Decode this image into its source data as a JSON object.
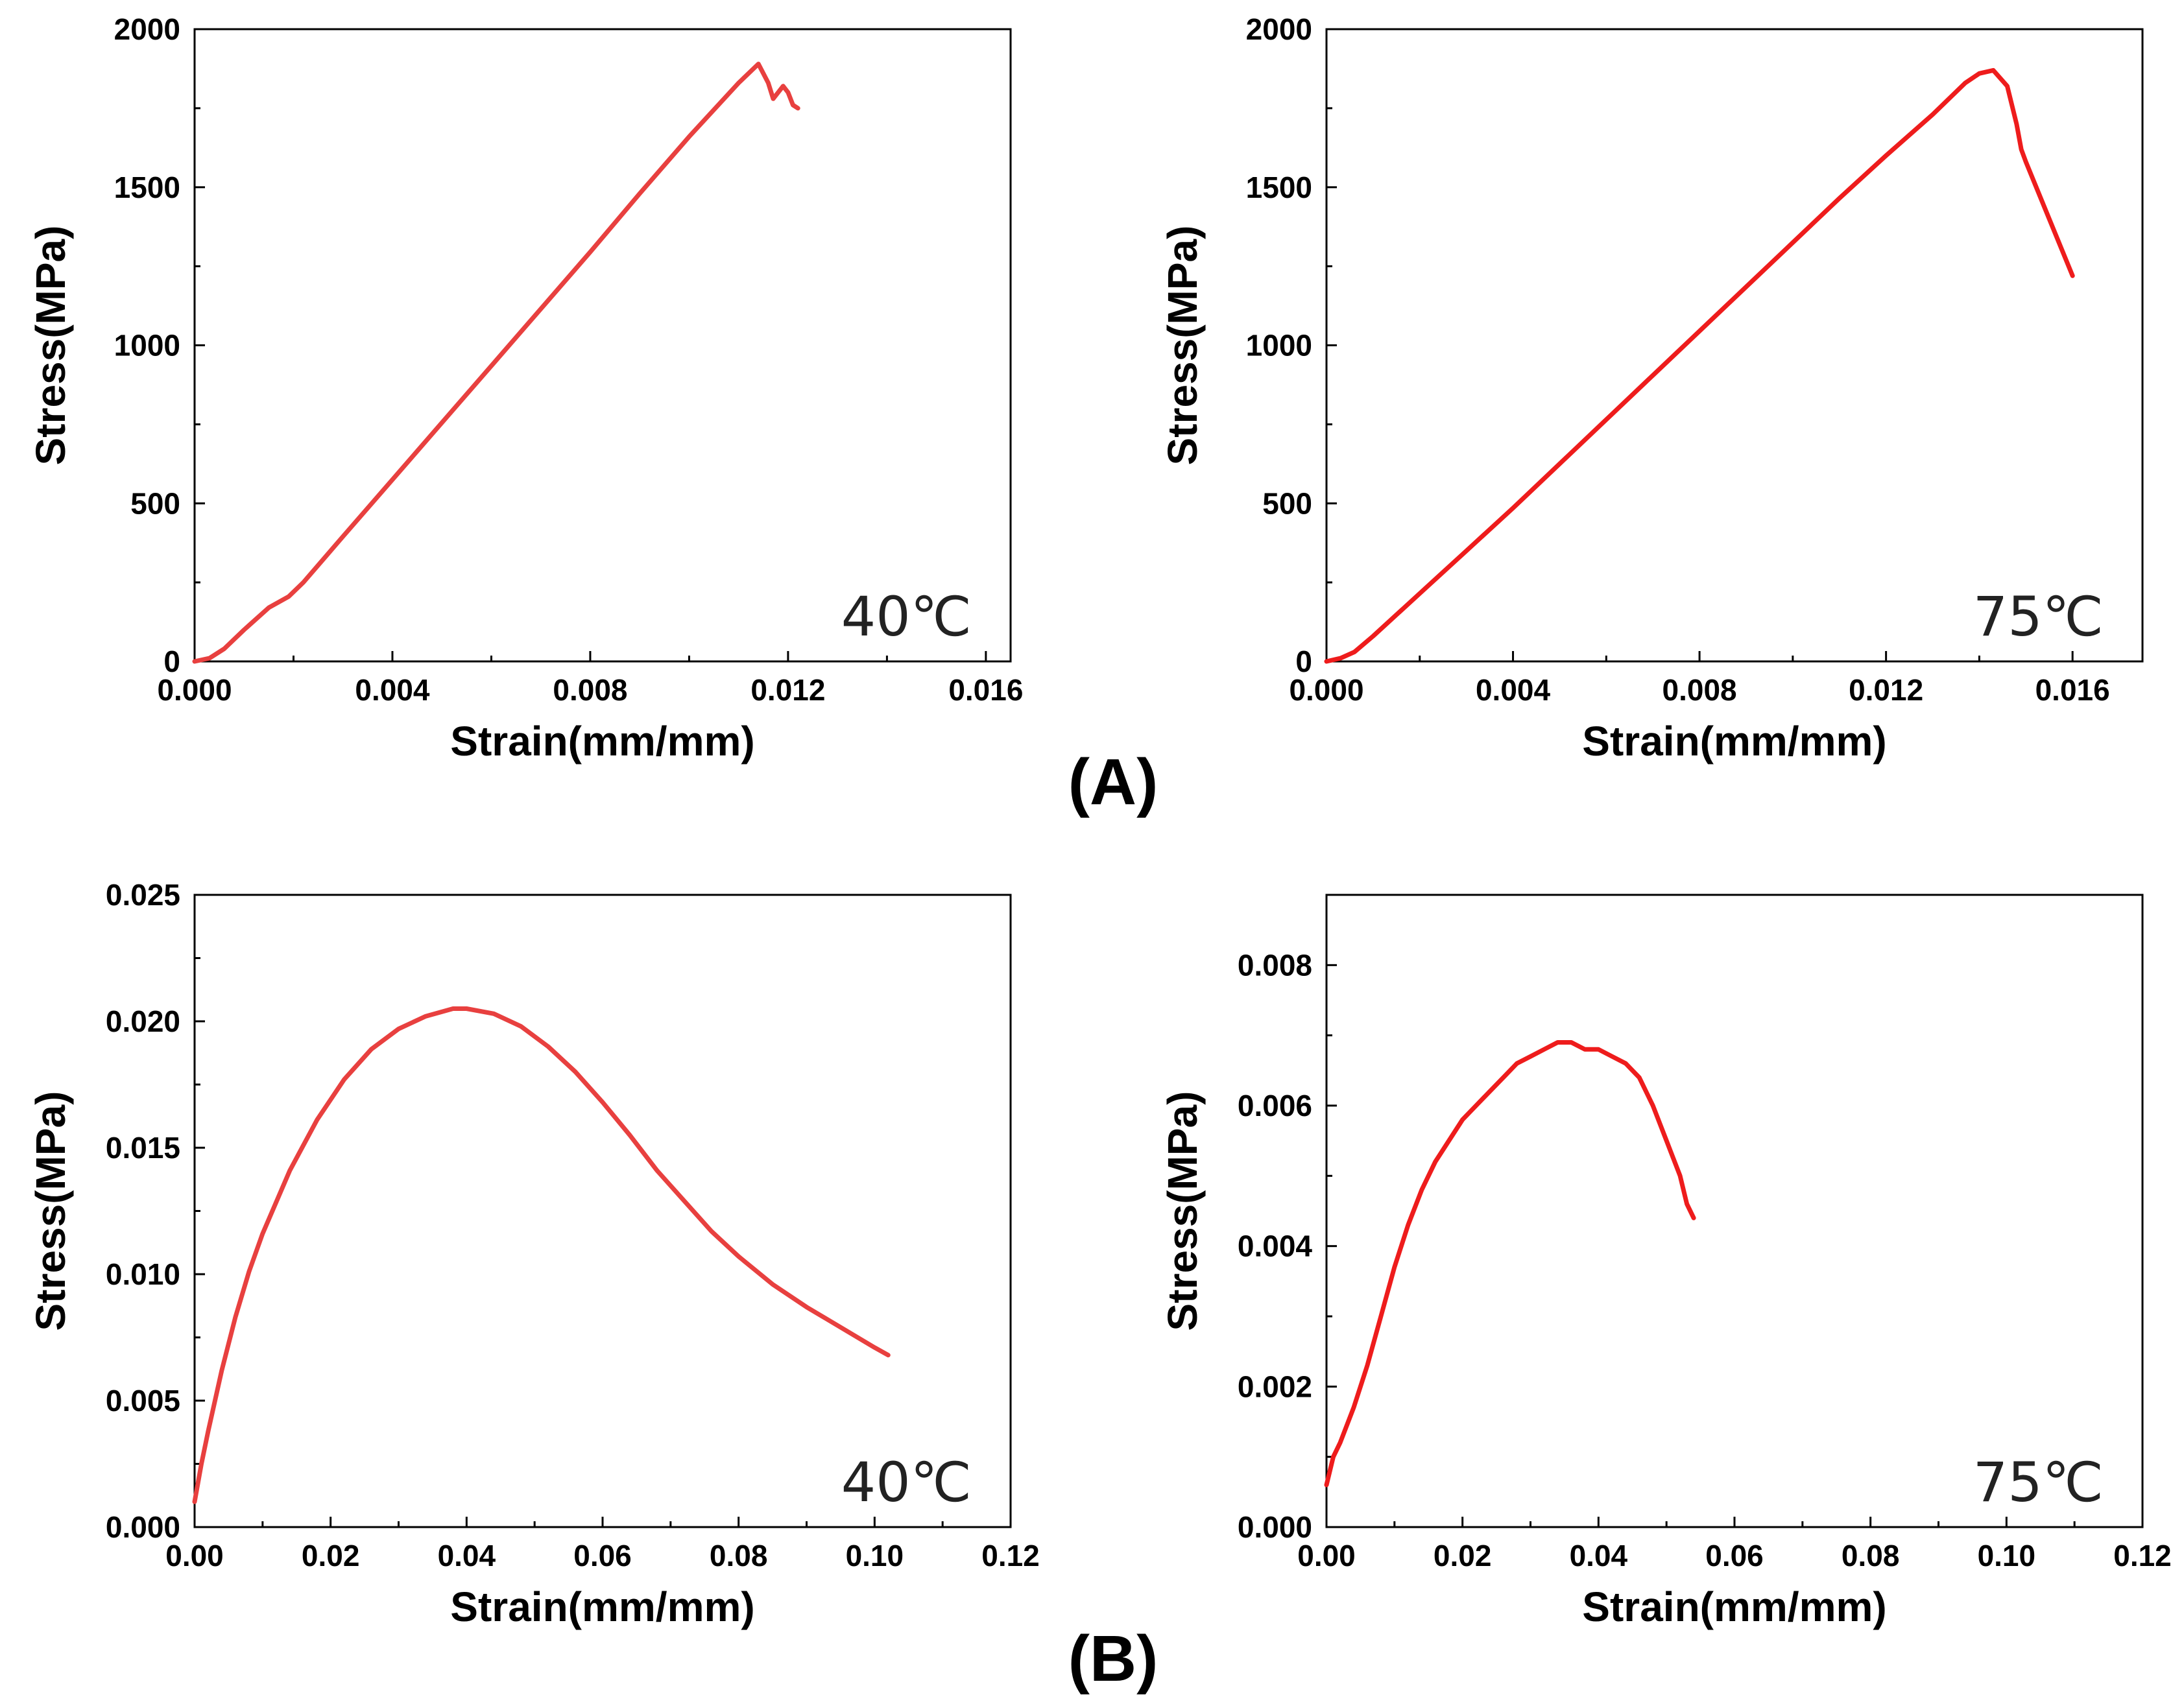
{
  "panels": [
    {
      "label": "(A)"
    },
    {
      "label": "(B)"
    }
  ],
  "chart_data": [
    {
      "type": "line",
      "panel": "(A)",
      "annotation": "40℃",
      "xlabel": "Strain(mm/mm)",
      "ylabel": "Stress(MPa)",
      "xlim": [
        0,
        0.0165
      ],
      "ylim": [
        0,
        2000
      ],
      "xticks": [
        0.0,
        0.004,
        0.008,
        0.012,
        0.016
      ],
      "xtick_labels": [
        "0.000",
        "0.004",
        "0.008",
        "0.012",
        "0.016"
      ],
      "yticks": [
        0,
        500,
        1000,
        1500,
        2000
      ],
      "ytick_labels": [
        "0",
        "500",
        "1000",
        "1500",
        "2000"
      ],
      "color": "#e8403f",
      "series": [
        {
          "name": "40℃",
          "x": [
            0,
            0.0003,
            0.0006,
            0.001,
            0.0015,
            0.0019,
            0.0022,
            0.003,
            0.004,
            0.005,
            0.006,
            0.007,
            0.008,
            0.009,
            0.01,
            0.011,
            0.0114,
            0.0116,
            0.0117,
            0.0118,
            0.0119,
            0.012,
            0.0121,
            0.0122
          ],
          "y": [
            0,
            10,
            40,
            100,
            170,
            205,
            250,
            395,
            575,
            755,
            935,
            1115,
            1295,
            1480,
            1660,
            1830,
            1890,
            1830,
            1780,
            1800,
            1820,
            1800,
            1760,
            1750
          ]
        }
      ]
    },
    {
      "type": "line",
      "panel": "(A)",
      "annotation": "75℃",
      "xlabel": "Strain(mm/mm)",
      "ylabel": "Stress(MPa)",
      "xlim": [
        0,
        0.0175
      ],
      "ylim": [
        0,
        2000
      ],
      "xticks": [
        0.0,
        0.004,
        0.008,
        0.012,
        0.016
      ],
      "xtick_labels": [
        "0.000",
        "0.004",
        "0.008",
        "0.012",
        "0.016"
      ],
      "yticks": [
        0,
        500,
        1000,
        1500,
        2000
      ],
      "ytick_labels": [
        "0",
        "500",
        "1000",
        "1500",
        "2000"
      ],
      "color": "#ee1c1c",
      "series": [
        {
          "name": "75℃",
          "x": [
            0,
            0.0003,
            0.0006,
            0.001,
            0.002,
            0.003,
            0.004,
            0.005,
            0.006,
            0.007,
            0.008,
            0.009,
            0.01,
            0.011,
            0.012,
            0.013,
            0.0137,
            0.014,
            0.0143,
            0.0146,
            0.0148,
            0.0149,
            0.015,
            0.0155,
            0.016
          ],
          "y": [
            0,
            10,
            30,
            80,
            215,
            350,
            485,
            625,
            765,
            905,
            1045,
            1185,
            1325,
            1465,
            1600,
            1730,
            1830,
            1860,
            1870,
            1820,
            1700,
            1620,
            1580,
            1400,
            1220
          ]
        }
      ]
    },
    {
      "type": "line",
      "panel": "(B)",
      "annotation": "40℃",
      "xlabel": "Strain(mm/mm)",
      "ylabel": "Stress(MPa)",
      "xlim": [
        0,
        0.12
      ],
      "ylim": [
        0,
        0.025
      ],
      "xticks": [
        0.0,
        0.02,
        0.04,
        0.06,
        0.08,
        0.1,
        0.12
      ],
      "xtick_labels": [
        "0.00",
        "0.02",
        "0.04",
        "0.06",
        "0.08",
        "0.10",
        "0.12"
      ],
      "yticks": [
        0,
        0.005,
        0.01,
        0.015,
        0.02,
        0.025
      ],
      "ytick_labels": [
        "0.000",
        "0.005",
        "0.010",
        "0.015",
        "0.020",
        "0.025"
      ],
      "color": "#e8403f",
      "series": [
        {
          "name": "40℃",
          "x": [
            0,
            0.001,
            0.002,
            0.004,
            0.006,
            0.008,
            0.01,
            0.014,
            0.018,
            0.022,
            0.026,
            0.03,
            0.034,
            0.038,
            0.04,
            0.044,
            0.048,
            0.052,
            0.056,
            0.06,
            0.064,
            0.068,
            0.072,
            0.076,
            0.08,
            0.085,
            0.09,
            0.095,
            0.1,
            0.102
          ],
          "y": [
            0.001,
            0.0025,
            0.0038,
            0.0062,
            0.0083,
            0.0101,
            0.0116,
            0.0141,
            0.0161,
            0.0177,
            0.0189,
            0.0197,
            0.0202,
            0.0205,
            0.0205,
            0.0203,
            0.0198,
            0.019,
            0.018,
            0.0168,
            0.0155,
            0.0141,
            0.0129,
            0.0117,
            0.0107,
            0.0096,
            0.0087,
            0.0079,
            0.0071,
            0.0068
          ]
        }
      ]
    },
    {
      "type": "line",
      "panel": "(B)",
      "annotation": "75℃",
      "xlabel": "Strain(mm/mm)",
      "ylabel": "Stress(MPa)",
      "xlim": [
        0,
        0.12
      ],
      "ylim": [
        0,
        0.009
      ],
      "xticks": [
        0.0,
        0.02,
        0.04,
        0.06,
        0.08,
        0.1,
        0.12
      ],
      "xtick_labels": [
        "0.00",
        "0.02",
        "0.04",
        "0.06",
        "0.08",
        "0.10",
        "0.12"
      ],
      "yticks": [
        0,
        0.002,
        0.004,
        0.006,
        0.008
      ],
      "ytick_labels": [
        "0.000",
        "0.002",
        "0.004",
        "0.006",
        "0.008"
      ],
      "color": "#ee1c1c",
      "series": [
        {
          "name": "75℃",
          "x": [
            0,
            0.001,
            0.002,
            0.004,
            0.006,
            0.008,
            0.01,
            0.012,
            0.014,
            0.016,
            0.018,
            0.02,
            0.022,
            0.024,
            0.026,
            0.028,
            0.03,
            0.032,
            0.034,
            0.036,
            0.038,
            0.04,
            0.042,
            0.044,
            0.046,
            0.048,
            0.05,
            0.052,
            0.053,
            0.054
          ],
          "y": [
            0.0006,
            0.001,
            0.0012,
            0.0017,
            0.0023,
            0.003,
            0.0037,
            0.0043,
            0.0048,
            0.0052,
            0.0055,
            0.0058,
            0.006,
            0.0062,
            0.0064,
            0.0066,
            0.0067,
            0.0068,
            0.0069,
            0.0069,
            0.0068,
            0.0068,
            0.0067,
            0.0066,
            0.0064,
            0.006,
            0.0055,
            0.005,
            0.0046,
            0.0044
          ]
        }
      ]
    }
  ]
}
